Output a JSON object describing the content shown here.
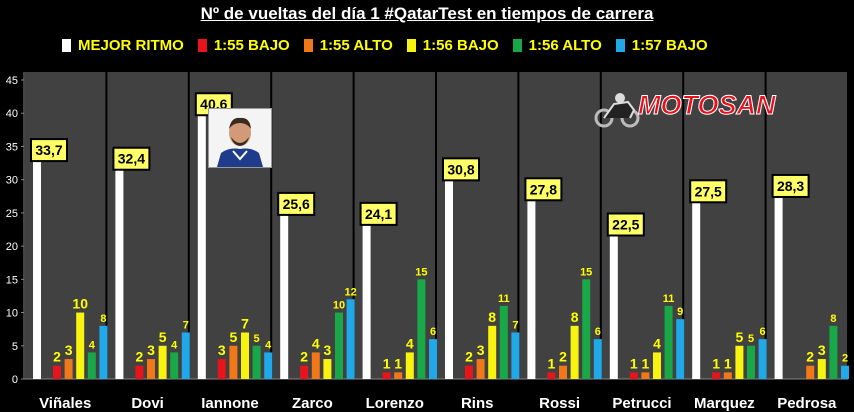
{
  "title": "Nº de vueltas del día 1 #QatarTest en tiempos de carrera",
  "logo_text": "MOTOSAN",
  "colors": {
    "background": "#000000",
    "plot_bg": "#404040",
    "label_yellow": "#ffff00",
    "callout_bg": "#ffff66"
  },
  "chart_data": {
    "type": "bar",
    "title": "Nº de vueltas del día 1 #QatarTest en tiempos de carrera",
    "ylim": [
      0,
      45
    ],
    "yticks": [
      0,
      5,
      10,
      15,
      20,
      25,
      30,
      35,
      40,
      45
    ],
    "grid": false,
    "legend_position": "top",
    "categories": [
      "Viñales",
      "Dovi",
      "Iannone",
      "Zarco",
      "Lorenzo",
      "Rins",
      "Rossi",
      "Petrucci",
      "Marquez",
      "Pedrosa"
    ],
    "series": [
      {
        "name": "MEJOR RITMO",
        "color": "#ffffff",
        "values": [
          33.7,
          32.4,
          40.6,
          25.6,
          24.1,
          30.8,
          27.8,
          22.5,
          27.5,
          28.3
        ],
        "labels": [
          "33,7",
          "32,4",
          "40,6",
          "25,6",
          "24,1",
          "30,8",
          "27,8",
          "22,5",
          "27,5",
          "28,3"
        ]
      },
      {
        "name": "1:55 BAJO",
        "color": "#e8141c",
        "values": [
          2,
          2,
          3,
          2,
          1,
          2,
          1,
          1,
          1,
          0
        ],
        "labels": [
          "2",
          "2",
          "3",
          "2",
          "1",
          "2",
          "1",
          "1",
          "1",
          ""
        ]
      },
      {
        "name": "1:55 ALTO",
        "color": "#f07818",
        "values": [
          3,
          3,
          5,
          4,
          1,
          3,
          2,
          1,
          1,
          2
        ],
        "labels": [
          "3",
          "3",
          "5",
          "4",
          "1",
          "3",
          "2",
          "1",
          "1",
          "2"
        ]
      },
      {
        "name": "1:56 BAJO",
        "color": "#f8f410",
        "values": [
          10,
          5,
          7,
          3,
          4,
          8,
          8,
          4,
          5,
          3
        ],
        "labels": [
          "10",
          "5",
          "7",
          "3",
          "4",
          "8",
          "8",
          "4",
          "5",
          "3"
        ]
      },
      {
        "name": "1:56 ALTO",
        "color": "#18a848",
        "values": [
          4,
          4,
          5,
          10,
          15,
          11,
          15,
          11,
          5,
          8
        ],
        "labels": [
          "4",
          "4",
          "5",
          "10",
          "15",
          "11",
          "15",
          "11",
          "5",
          "8"
        ]
      },
      {
        "name": "1:57 BAJO",
        "color": "#20a8e8",
        "values": [
          8,
          7,
          4,
          12,
          6,
          7,
          6,
          9,
          6,
          2
        ],
        "labels": [
          "8",
          "7",
          "4",
          "12",
          "6",
          "7",
          "6",
          "9",
          "6",
          "2"
        ]
      }
    ]
  }
}
